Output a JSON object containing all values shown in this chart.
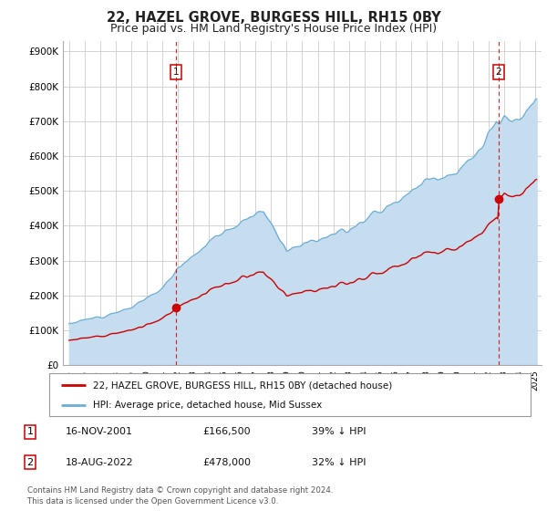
{
  "title": "22, HAZEL GROVE, BURGESS HILL, RH15 0BY",
  "subtitle": "Price paid vs. HM Land Registry's House Price Index (HPI)",
  "title_fontsize": 10.5,
  "subtitle_fontsize": 9,
  "ylabel_ticks": [
    "£0",
    "£100K",
    "£200K",
    "£300K",
    "£400K",
    "£500K",
    "£600K",
    "£700K",
    "£800K",
    "£900K"
  ],
  "ytick_values": [
    0,
    100000,
    200000,
    300000,
    400000,
    500000,
    600000,
    700000,
    800000,
    900000
  ],
  "ylim": [
    0,
    930000
  ],
  "xlim_start": 1994.6,
  "xlim_end": 2025.4,
  "hpi_color": "#6baed6",
  "hpi_fill_color": "#c6dcef",
  "price_color": "#cc0000",
  "purchase1_date": 2001.88,
  "purchase1_price": 166500,
  "purchase2_date": 2022.63,
  "purchase2_price": 478000,
  "legend_line1": "22, HAZEL GROVE, BURGESS HILL, RH15 0BY (detached house)",
  "legend_line2": "HPI: Average price, detached house, Mid Sussex",
  "table_row1": [
    "1",
    "16-NOV-2001",
    "£166,500",
    "39% ↓ HPI"
  ],
  "table_row2": [
    "2",
    "18-AUG-2022",
    "£478,000",
    "32% ↓ HPI"
  ],
  "footer": "Contains HM Land Registry data © Crown copyright and database right 2024.\nThis data is licensed under the Open Government Licence v3.0.",
  "background_color": "#ffffff",
  "grid_color": "#cccccc",
  "hpi_piecewise": [
    [
      1995.0,
      120000
    ],
    [
      1997.0,
      140000
    ],
    [
      1999.0,
      165000
    ],
    [
      2001.0,
      220000
    ],
    [
      2002.0,
      280000
    ],
    [
      2004.5,
      370000
    ],
    [
      2007.5,
      445000
    ],
    [
      2009.0,
      330000
    ],
    [
      2010.0,
      350000
    ],
    [
      2013.0,
      390000
    ],
    [
      2016.0,
      470000
    ],
    [
      2018.0,
      530000
    ],
    [
      2020.0,
      550000
    ],
    [
      2021.5,
      620000
    ],
    [
      2022.5,
      700000
    ],
    [
      2022.7,
      690000
    ],
    [
      2023.0,
      710000
    ],
    [
      2023.5,
      695000
    ],
    [
      2024.0,
      700000
    ],
    [
      2025.0,
      760000
    ]
  ]
}
